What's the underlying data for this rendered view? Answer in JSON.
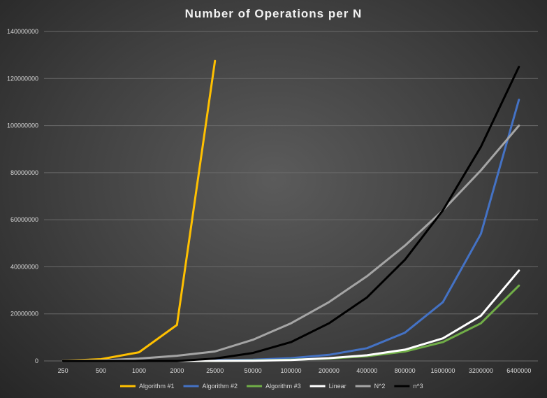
{
  "chart_data": {
    "type": "line",
    "title": "Number of Operations per N",
    "categories": [
      "250",
      "500",
      "1000",
      "2000",
      "25000",
      "50000",
      "100000",
      "200000",
      "400000",
      "800000",
      "1600000",
      "3200000",
      "6400000"
    ],
    "ylim": [
      0,
      140000000
    ],
    "yticks": [
      "0",
      "20000000",
      "40000000",
      "60000000",
      "80000000",
      "100000000",
      "120000000",
      "140000000"
    ],
    "grid": true,
    "legend_position": "bottom",
    "series": [
      {
        "name": "Algorithm #1",
        "color": "#ffc000",
        "values": [
          62500,
          750000,
          3700000,
          15300000,
          127500000,
          null,
          null,
          null,
          null,
          null,
          null,
          null,
          null
        ]
      },
      {
        "name": "Algorithm #2",
        "color": "#4472c4",
        "values": [
          0,
          0,
          0,
          0,
          300000,
          500000,
          1200000,
          2600000,
          5400000,
          12000000,
          25000000,
          54000000,
          111000000
        ]
      },
      {
        "name": "Algorithm #3",
        "color": "#70ad47",
        "values": [
          0,
          0,
          0,
          0,
          0,
          200000,
          500000,
          1000000,
          2000000,
          4000000,
          8000000,
          16000000,
          32000000
        ]
      },
      {
        "name": "Linear",
        "color": "#ffffff",
        "values": [
          250,
          500,
          1000,
          2000,
          25000,
          50000,
          400000,
          1200000,
          2400000,
          4800000,
          9600000,
          19200000,
          38400000
        ]
      },
      {
        "name": "N^2",
        "color": "#a5a5a5",
        "values": [
          62500,
          250000,
          1000000,
          2200000,
          4000000,
          9000000,
          16000000,
          25000000,
          36000000,
          49000000,
          64000000,
          81000000,
          100000000
        ]
      },
      {
        "name": "n^3",
        "color": "#000000",
        "values": [
          0,
          0,
          0,
          0,
          1000000,
          3400000,
          8000000,
          16000000,
          27000000,
          43000000,
          64000000,
          91000000,
          125000000
        ]
      }
    ]
  }
}
